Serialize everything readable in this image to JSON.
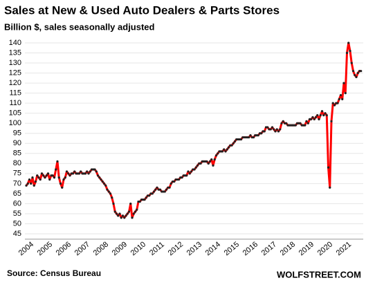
{
  "chart_data": {
    "type": "line",
    "title": "Sales at New & Used Auto Dealers & Parts Stores",
    "subtitle": "Billion $, sales seasonally adjusted",
    "source": "Source: Census Bureau",
    "brand": "WOLFSTREET.COM",
    "categories": [
      "2004",
      null,
      null,
      null,
      null,
      null,
      null,
      null,
      null,
      null,
      null,
      null,
      "2005",
      null,
      null,
      null,
      null,
      null,
      null,
      null,
      null,
      null,
      null,
      null,
      "2006",
      null,
      null,
      null,
      null,
      null,
      null,
      null,
      null,
      null,
      null,
      null,
      "2007",
      null,
      null,
      null,
      null,
      null,
      null,
      null,
      null,
      null,
      null,
      null,
      "2008",
      null,
      null,
      null,
      null,
      null,
      null,
      null,
      null,
      null,
      null,
      null,
      "2009",
      null,
      null,
      null,
      null,
      null,
      null,
      null,
      null,
      null,
      null,
      null,
      "2010",
      null,
      null,
      null,
      null,
      null,
      null,
      null,
      null,
      null,
      null,
      null,
      "2011",
      null,
      null,
      null,
      null,
      null,
      null,
      null,
      null,
      null,
      null,
      null,
      "2012",
      null,
      null,
      null,
      null,
      null,
      null,
      null,
      null,
      null,
      null,
      null,
      "2013",
      null,
      null,
      null,
      null,
      null,
      null,
      null,
      null,
      null,
      null,
      null,
      "2014",
      null,
      null,
      null,
      null,
      null,
      null,
      null,
      null,
      null,
      null,
      null,
      "2015",
      null,
      null,
      null,
      null,
      null,
      null,
      null,
      null,
      null,
      null,
      null,
      "2016",
      null,
      null,
      null,
      null,
      null,
      null,
      null,
      null,
      null,
      null,
      null,
      "2017",
      null,
      null,
      null,
      null,
      null,
      null,
      null,
      null,
      null,
      null,
      null,
      "2018",
      null,
      null,
      null,
      null,
      null,
      null,
      null,
      null,
      null,
      null,
      null,
      "2019",
      null,
      null,
      null,
      null,
      null,
      null,
      null,
      null,
      null,
      null,
      null,
      "2020",
      null,
      null,
      null,
      null,
      null,
      null,
      null,
      null,
      null,
      null,
      null,
      "2021",
      null,
      null,
      null,
      null,
      null,
      null,
      null,
      null,
      null,
      null,
      null
    ],
    "series": [
      {
        "name": "Sales",
        "color": "#ff0000",
        "marker_color": "#222222",
        "values": [
          69,
          70,
          72,
          70,
          73,
          69,
          71,
          74,
          73,
          72,
          75,
          74,
          73,
          74,
          75,
          72,
          74,
          74,
          73,
          77,
          81,
          73,
          70,
          68,
          72,
          73,
          76,
          75,
          74,
          75,
          75,
          76,
          75,
          75,
          75,
          76,
          75,
          75,
          75,
          76,
          75,
          76,
          77,
          77,
          77,
          76,
          74,
          73,
          72,
          71,
          70,
          69,
          67,
          66,
          65,
          63,
          60,
          56,
          55,
          54,
          55,
          53,
          54,
          53,
          54,
          55,
          56,
          60,
          53,
          55,
          56,
          57,
          61,
          61,
          62,
          62,
          62,
          63,
          64,
          64,
          65,
          65,
          66,
          67,
          68,
          67,
          67,
          66,
          66,
          66,
          67,
          68,
          68,
          70,
          71,
          71,
          72,
          72,
          72,
          73,
          73,
          74,
          74,
          74,
          76,
          75,
          76,
          77,
          77,
          78,
          79,
          80,
          80,
          81,
          81,
          81,
          81,
          80,
          81,
          82,
          79,
          82,
          84,
          85,
          86,
          86,
          86,
          87,
          86,
          87,
          88,
          89,
          89,
          90,
          91,
          92,
          92,
          92,
          92,
          93,
          93,
          93,
          93,
          93,
          94,
          93,
          93,
          94,
          94,
          94,
          95,
          95,
          96,
          96,
          98,
          98,
          97,
          97,
          98,
          97,
          96,
          97,
          96,
          97,
          100,
          101,
          100,
          100,
          99,
          99,
          99,
          99,
          99,
          99,
          100,
          100,
          100,
          99,
          99,
          99,
          101,
          100,
          102,
          102,
          103,
          102,
          103,
          104,
          102,
          104,
          106,
          104,
          105,
          104,
          78,
          68,
          101,
          110,
          109,
          110,
          110,
          112,
          114,
          112,
          120,
          115,
          135,
          140,
          136,
          130,
          126,
          124,
          123,
          125,
          126,
          126
        ]
      }
    ],
    "ylim": [
      43,
      142
    ],
    "yticks": [
      45,
      50,
      55,
      60,
      65,
      70,
      75,
      80,
      85,
      90,
      95,
      100,
      105,
      110,
      115,
      120,
      125,
      130,
      135,
      140
    ],
    "grid": true
  }
}
